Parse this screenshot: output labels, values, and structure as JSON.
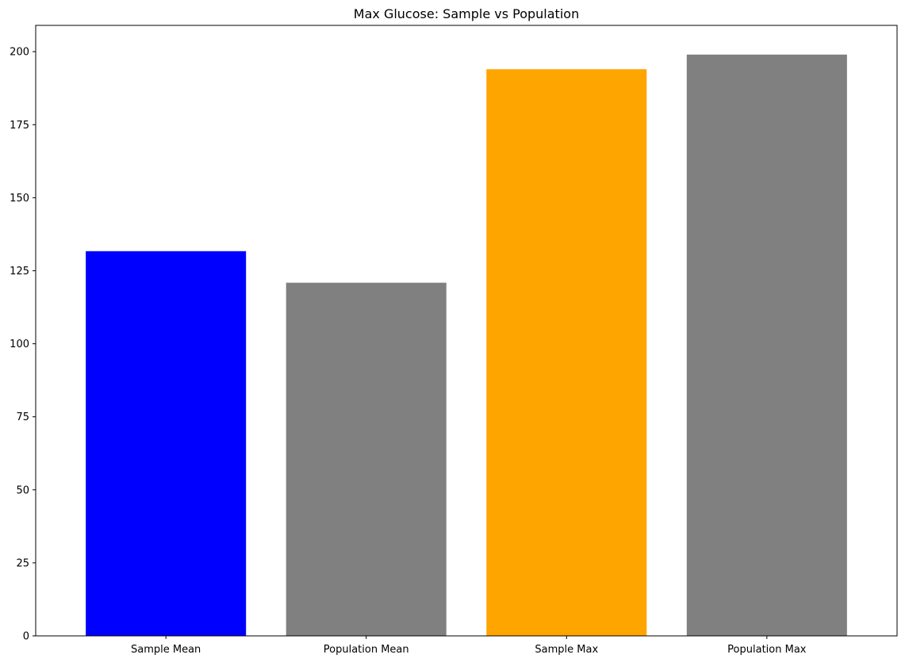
{
  "chart_data": {
    "type": "bar",
    "title": "Max Glucose: Sample vs Population",
    "xlabel": "",
    "ylabel": "",
    "categories": [
      "Sample Mean",
      "Population Mean",
      "Sample Max",
      "Population Max"
    ],
    "values": [
      131.7,
      120.9,
      194,
      199
    ],
    "colors": [
      "#0000ff",
      "#808080",
      "#ffa500",
      "#808080"
    ],
    "ylim": [
      0,
      209
    ],
    "yticks": [
      0,
      25,
      50,
      75,
      100,
      125,
      150,
      175,
      200
    ],
    "grid": false,
    "legend": null
  }
}
